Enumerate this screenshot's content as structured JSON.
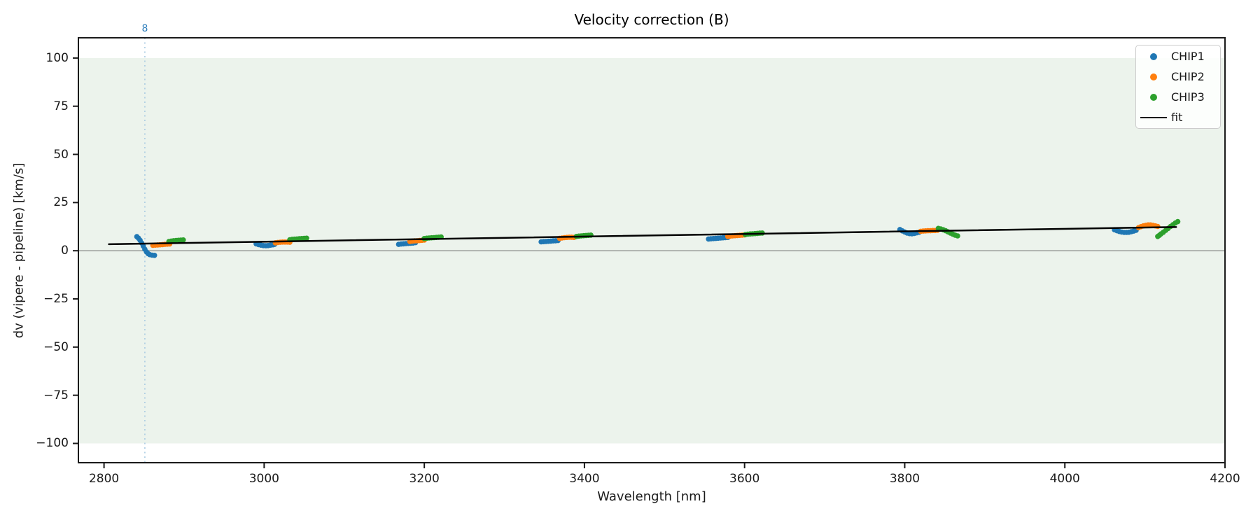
{
  "figure": {
    "title": "Velocity correction (B)",
    "xlabel": "Wavelength [nm]",
    "ylabel": "dv (vipere - pipeline) [km/s]"
  },
  "legend": {
    "position": "upper right",
    "entries": [
      {
        "label": "CHIP1",
        "kind": "scatter",
        "color": "#1f77b4"
      },
      {
        "label": "CHIP2",
        "kind": "scatter",
        "color": "#ff7f0e"
      },
      {
        "label": "CHIP3",
        "kind": "scatter",
        "color": "#2ca02c"
      },
      {
        "label": "fit",
        "kind": "line",
        "color": "#000000"
      }
    ]
  },
  "chart_data": {
    "type": "scatter",
    "title": "Velocity correction (B)",
    "xlabel": "Wavelength [nm]",
    "ylabel": "dv (vipere - pipeline) [km/s]",
    "xlim": [
      2768,
      4200
    ],
    "ylim": [
      -110,
      110.5
    ],
    "xticks": [
      2800,
      3000,
      3200,
      3400,
      3600,
      3800,
      4000,
      4200
    ],
    "xticklabels": [
      "2800",
      "3000",
      "3200",
      "3400",
      "3600",
      "3800",
      "4000",
      "4200"
    ],
    "yticks": [
      100,
      75,
      50,
      25,
      0,
      -25,
      -50,
      -75,
      -100
    ],
    "yticklabels": [
      "100",
      "75",
      "50",
      "25",
      "0",
      "−25",
      "−50",
      "−75",
      "−100"
    ],
    "grid": false,
    "legend_position": "upper right",
    "shaded_band": {
      "ymin": -100,
      "ymax": 100,
      "color": "#ecf3ec"
    },
    "zero_line": {
      "y": 0,
      "color": "#7a7a7a"
    },
    "vline": {
      "x": 2851,
      "label": "8",
      "line_color": "#a8cbe2",
      "label_color": "#2e7ebc",
      "style": "dotted"
    },
    "marker_radius_px": 3.8,
    "series": [
      {
        "name": "CHIP1",
        "color": "#1f77b4",
        "points": [
          [
            2841,
            7.3
          ],
          [
            2843,
            6.5
          ],
          [
            2845,
            5.4
          ],
          [
            2847,
            4.0
          ],
          [
            2849,
            2.4
          ],
          [
            2851,
            0.8
          ],
          [
            2853,
            -0.6
          ],
          [
            2855,
            -1.5
          ],
          [
            2857,
            -2.0
          ],
          [
            2860,
            -2.3
          ],
          [
            2863,
            -2.4
          ],
          [
            2990,
            3.6
          ],
          [
            2993,
            3.2
          ],
          [
            2996,
            2.9
          ],
          [
            2999,
            2.7
          ],
          [
            3002,
            2.6
          ],
          [
            3005,
            2.7
          ],
          [
            3008,
            2.9
          ],
          [
            3011,
            3.1
          ],
          [
            3013,
            3.3
          ],
          [
            3168,
            3.3
          ],
          [
            3171,
            3.5
          ],
          [
            3174,
            3.6
          ],
          [
            3177,
            3.7
          ],
          [
            3180,
            3.8
          ],
          [
            3183,
            3.9
          ],
          [
            3186,
            4.0
          ],
          [
            3189,
            4.2
          ],
          [
            3346,
            4.6
          ],
          [
            3349,
            4.7
          ],
          [
            3352,
            4.8
          ],
          [
            3355,
            4.9
          ],
          [
            3358,
            5.0
          ],
          [
            3361,
            5.1
          ],
          [
            3364,
            5.2
          ],
          [
            3367,
            5.3
          ],
          [
            3555,
            6.1
          ],
          [
            3558,
            6.2
          ],
          [
            3561,
            6.3
          ],
          [
            3564,
            6.4
          ],
          [
            3567,
            6.5
          ],
          [
            3570,
            6.6
          ],
          [
            3573,
            6.7
          ],
          [
            3576,
            6.8
          ],
          [
            3579,
            6.9
          ],
          [
            3794,
            11.0
          ],
          [
            3797,
            10.3
          ],
          [
            3800,
            9.7
          ],
          [
            3803,
            9.2
          ],
          [
            3806,
            8.9
          ],
          [
            3809,
            8.8
          ],
          [
            3812,
            9.0
          ],
          [
            3815,
            9.3
          ],
          [
            3818,
            9.6
          ],
          [
            4062,
            10.9
          ],
          [
            4065,
            10.4
          ],
          [
            4068,
            10.0
          ],
          [
            4071,
            9.7
          ],
          [
            4074,
            9.5
          ],
          [
            4077,
            9.5
          ],
          [
            4080,
            9.6
          ],
          [
            4083,
            9.9
          ],
          [
            4086,
            10.2
          ],
          [
            4089,
            10.6
          ]
        ]
      },
      {
        "name": "CHIP2",
        "color": "#ff7f0e",
        "points": [
          [
            2861,
            2.8
          ],
          [
            2864,
            2.9
          ],
          [
            2867,
            3.0
          ],
          [
            2870,
            3.1
          ],
          [
            2873,
            3.2
          ],
          [
            2876,
            3.3
          ],
          [
            2879,
            3.4
          ],
          [
            2882,
            3.5
          ],
          [
            3014,
            4.1
          ],
          [
            3017,
            4.3
          ],
          [
            3020,
            4.4
          ],
          [
            3023,
            4.5
          ],
          [
            3026,
            4.5
          ],
          [
            3029,
            4.5
          ],
          [
            3032,
            4.4
          ],
          [
            3182,
            4.8
          ],
          [
            3185,
            5.0
          ],
          [
            3188,
            5.1
          ],
          [
            3191,
            5.2
          ],
          [
            3194,
            5.3
          ],
          [
            3197,
            5.4
          ],
          [
            3200,
            5.5
          ],
          [
            3369,
            6.4
          ],
          [
            3372,
            6.6
          ],
          [
            3375,
            6.8
          ],
          [
            3378,
            6.9
          ],
          [
            3381,
            7.0
          ],
          [
            3384,
            7.0
          ],
          [
            3387,
            6.9
          ],
          [
            3579,
            7.4
          ],
          [
            3582,
            7.6
          ],
          [
            3585,
            7.7
          ],
          [
            3588,
            7.8
          ],
          [
            3591,
            7.9
          ],
          [
            3594,
            8.0
          ],
          [
            3597,
            8.1
          ],
          [
            3600,
            8.2
          ],
          [
            3820,
            10.1
          ],
          [
            3823,
            10.2
          ],
          [
            3826,
            10.3
          ],
          [
            3829,
            10.4
          ],
          [
            3832,
            10.4
          ],
          [
            3835,
            10.5
          ],
          [
            3838,
            10.5
          ],
          [
            3841,
            10.6
          ],
          [
            4092,
            12.0
          ],
          [
            4095,
            12.5
          ],
          [
            4098,
            12.9
          ],
          [
            4101,
            13.2
          ],
          [
            4104,
            13.4
          ],
          [
            4107,
            13.4
          ],
          [
            4110,
            13.2
          ],
          [
            4113,
            12.9
          ],
          [
            4116,
            12.6
          ]
        ]
      },
      {
        "name": "CHIP3",
        "color": "#2ca02c",
        "points": [
          [
            2881,
            4.8
          ],
          [
            2884,
            5.0
          ],
          [
            2887,
            5.2
          ],
          [
            2890,
            5.3
          ],
          [
            2893,
            5.4
          ],
          [
            2896,
            5.5
          ],
          [
            2899,
            5.6
          ],
          [
            3032,
            5.7
          ],
          [
            3035,
            5.9
          ],
          [
            3038,
            6.0
          ],
          [
            3041,
            6.1
          ],
          [
            3044,
            6.2
          ],
          [
            3047,
            6.3
          ],
          [
            3050,
            6.4
          ],
          [
            3053,
            6.5
          ],
          [
            3200,
            6.3
          ],
          [
            3203,
            6.5
          ],
          [
            3206,
            6.6
          ],
          [
            3209,
            6.7
          ],
          [
            3212,
            6.8
          ],
          [
            3215,
            6.9
          ],
          [
            3218,
            7.0
          ],
          [
            3221,
            7.1
          ],
          [
            3390,
            7.4
          ],
          [
            3393,
            7.6
          ],
          [
            3396,
            7.7
          ],
          [
            3399,
            7.8
          ],
          [
            3402,
            7.9
          ],
          [
            3405,
            8.0
          ],
          [
            3408,
            8.1
          ],
          [
            3601,
            8.4
          ],
          [
            3604,
            8.6
          ],
          [
            3607,
            8.7
          ],
          [
            3610,
            8.8
          ],
          [
            3613,
            8.9
          ],
          [
            3616,
            9.0
          ],
          [
            3619,
            9.1
          ],
          [
            3622,
            9.2
          ],
          [
            3842,
            11.6
          ],
          [
            3845,
            11.3
          ],
          [
            3848,
            10.9
          ],
          [
            3851,
            10.4
          ],
          [
            3854,
            9.8
          ],
          [
            3857,
            9.2
          ],
          [
            3860,
            8.6
          ],
          [
            3863,
            8.1
          ],
          [
            3866,
            7.7
          ],
          [
            4116,
            7.4
          ],
          [
            4118,
            8.0
          ],
          [
            4120,
            8.7
          ],
          [
            4123,
            9.6
          ],
          [
            4126,
            10.6
          ],
          [
            4129,
            11.6
          ],
          [
            4132,
            12.6
          ],
          [
            4135,
            13.5
          ],
          [
            4138,
            14.4
          ],
          [
            4141,
            15.1
          ]
        ]
      }
    ],
    "fit": {
      "name": "fit",
      "color": "#000000",
      "points": [
        [
          2806,
          3.4
        ],
        [
          4139,
          12.3
        ]
      ]
    }
  }
}
